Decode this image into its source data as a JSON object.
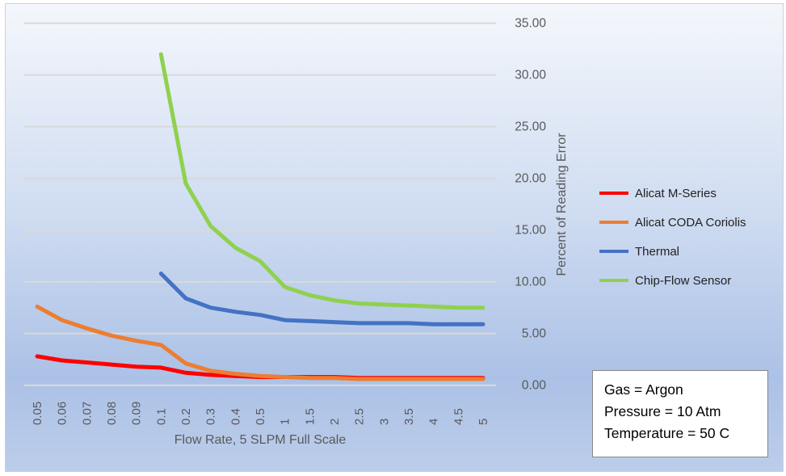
{
  "chart_data": {
    "type": "line",
    "categories": [
      "0.05",
      "0.06",
      "0.07",
      "0.08",
      "0.09",
      "0.1",
      "0.2",
      "0.3",
      "0.4",
      "0.5",
      "1",
      "1.5",
      "2",
      "2.5",
      "3",
      "3.5",
      "4",
      "4.5",
      "5"
    ],
    "xlabel": "Flow Rate, 5 SLPM Full Scale",
    "ylabel": "Percent of Reading Error",
    "ylim": [
      0,
      35
    ],
    "yticks": [
      "0.00",
      "5.00",
      "10.00",
      "15.00",
      "20.00",
      "25.00",
      "30.00",
      "35.00"
    ],
    "y_axis_side": "right",
    "grid": true,
    "legend_position": "right",
    "series": [
      {
        "name": "Alicat M-Series",
        "color": "#FF0000",
        "values": [
          2.8,
          2.4,
          2.2,
          2.0,
          1.8,
          1.7,
          1.2,
          1.0,
          0.9,
          0.8,
          0.8,
          0.8,
          0.8,
          0.7,
          0.7,
          0.7,
          0.7,
          0.7,
          0.7
        ]
      },
      {
        "name": "Alicat CODA Coriolis",
        "color": "#ED7D31",
        "values": [
          7.6,
          6.3,
          5.5,
          4.8,
          4.3,
          3.9,
          2.1,
          1.4,
          1.1,
          0.9,
          0.8,
          0.7,
          0.7,
          0.6,
          0.6,
          0.6,
          0.6,
          0.6,
          0.6
        ]
      },
      {
        "name": "Thermal",
        "color": "#4472C4",
        "values": [
          null,
          null,
          null,
          null,
          null,
          10.8,
          8.4,
          7.5,
          7.1,
          6.8,
          6.3,
          6.2,
          6.1,
          6.0,
          6.0,
          6.0,
          5.9,
          5.9,
          5.9
        ]
      },
      {
        "name": "Chip-Flow Sensor",
        "color": "#8FD14F",
        "values": [
          null,
          null,
          null,
          null,
          null,
          32.0,
          19.5,
          15.4,
          13.3,
          12.0,
          9.5,
          8.7,
          8.2,
          7.9,
          7.8,
          7.7,
          7.6,
          7.5,
          7.5
        ]
      }
    ]
  },
  "annotation": {
    "lines": [
      "Gas = Argon",
      "Pressure = 10 Atm",
      "Temperature = 50 C"
    ]
  }
}
